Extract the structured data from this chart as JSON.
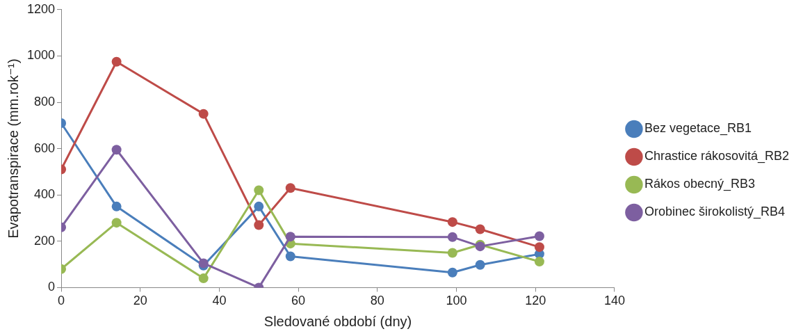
{
  "chart_data": {
    "type": "line",
    "xlabel": "Sledované období (dny)",
    "ylabel": "Evapotranspirace (mm.rok⁻¹)",
    "x": [
      0,
      14,
      36,
      50,
      58,
      99,
      106,
      121
    ],
    "xlim": [
      0,
      140
    ],
    "xticks": [
      0,
      20,
      40,
      60,
      80,
      100,
      120,
      140
    ],
    "ylim": [
      0,
      1200
    ],
    "yticks": [
      0,
      200,
      400,
      600,
      800,
      1000,
      1200
    ],
    "grid": false,
    "legend": "right",
    "marker": "circle",
    "line_style": "solid",
    "series": [
      {
        "name": "Bez vegetace_RB1",
        "color": "#4a7ebb",
        "values": [
          710,
          350,
          95,
          350,
          135,
          65,
          98,
          145
        ]
      },
      {
        "name": "Chrastice rákosovitá_RB2",
        "color": "#be4b48",
        "values": [
          510,
          975,
          750,
          270,
          430,
          283,
          252,
          175
        ]
      },
      {
        "name": "Rákos obecný_RB3",
        "color": "#98b954",
        "values": [
          80,
          280,
          40,
          420,
          190,
          150,
          185,
          112
        ]
      },
      {
        "name": "Orobinec širokolistý_RB4",
        "color": "#7d5fa0",
        "values": [
          260,
          595,
          105,
          0,
          220,
          218,
          178,
          222
        ]
      }
    ]
  }
}
